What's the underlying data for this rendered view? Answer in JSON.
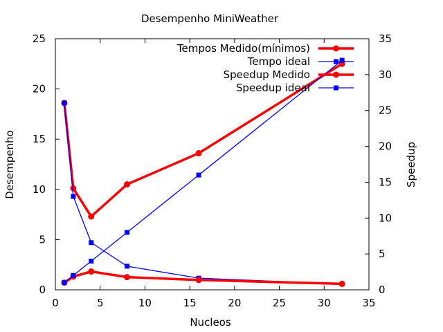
{
  "chart_data": {
    "type": "line",
    "title": "Desempenho MiniWeather",
    "xlabel": "Nucleos",
    "ylabel": "Desempenho",
    "y2label": "Speedup",
    "xlim": [
      0,
      35
    ],
    "ylim": [
      0,
      25
    ],
    "y2lim": [
      0,
      35
    ],
    "x_ticks": [
      0,
      5,
      10,
      15,
      20,
      25,
      30,
      35
    ],
    "y_ticks": [
      0,
      5,
      10,
      15,
      20,
      25
    ],
    "y2_ticks": [
      0,
      5,
      10,
      15,
      20,
      25,
      30,
      35
    ],
    "grid": false,
    "legend_position": "top-right",
    "x": [
      1,
      2,
      4,
      8,
      16,
      32
    ],
    "series": [
      {
        "name": "Tempos Medido(mínimos)",
        "axis": "y",
        "marker": "circle",
        "style": "thick",
        "color": "#ff0000",
        "values": [
          18.6,
          10.1,
          7.3,
          10.5,
          13.6,
          22.5
        ]
      },
      {
        "name": "Tempo ideal",
        "axis": "y",
        "marker": "square",
        "style": "thin",
        "color": "#0000ff",
        "values": [
          18.6,
          9.3,
          4.7,
          2.35,
          1.16,
          0.58
        ]
      },
      {
        "name": "Speedup Medido",
        "axis": "y2",
        "marker": "circle",
        "style": "thick",
        "color": "#ff0000",
        "values": [
          1.0,
          1.84,
          2.55,
          1.77,
          1.37,
          0.83
        ]
      },
      {
        "name": "Speedup ideal",
        "axis": "y2",
        "marker": "square",
        "style": "thin",
        "color": "#0000ff",
        "values": [
          1,
          2,
          4,
          8,
          16,
          32
        ]
      }
    ]
  }
}
